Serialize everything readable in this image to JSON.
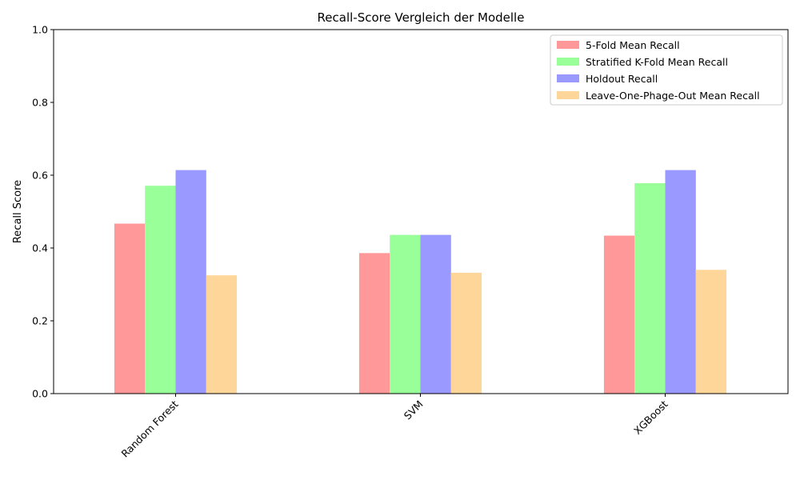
{
  "chart_data": {
    "type": "bar",
    "title": "Recall-Score Vergleich der Modelle",
    "xlabel": "",
    "ylabel": "Recall Score",
    "ylim": [
      0,
      1.0
    ],
    "yticks": [
      "0.0",
      "0.2",
      "0.4",
      "0.6",
      "0.8",
      "1.0"
    ],
    "categories": [
      "Random Forest",
      "SVM",
      "XGBoost"
    ],
    "series": [
      {
        "name": "5-Fold Mean Recall",
        "color": "#ff9999",
        "values": [
          0.467,
          0.386,
          0.434
        ]
      },
      {
        "name": "Stratified K-Fold Mean Recall",
        "color": "#99ff99",
        "values": [
          0.571,
          0.436,
          0.578
        ]
      },
      {
        "name": "Holdout Recall",
        "color": "#9999ff",
        "values": [
          0.614,
          0.436,
          0.614
        ]
      },
      {
        "name": "Leave-One-Phage-Out Mean Recall",
        "color": "#ffd699",
        "values": [
          0.325,
          0.332,
          0.34
        ]
      }
    ],
    "legend_position": "top-right",
    "grid": false
  }
}
